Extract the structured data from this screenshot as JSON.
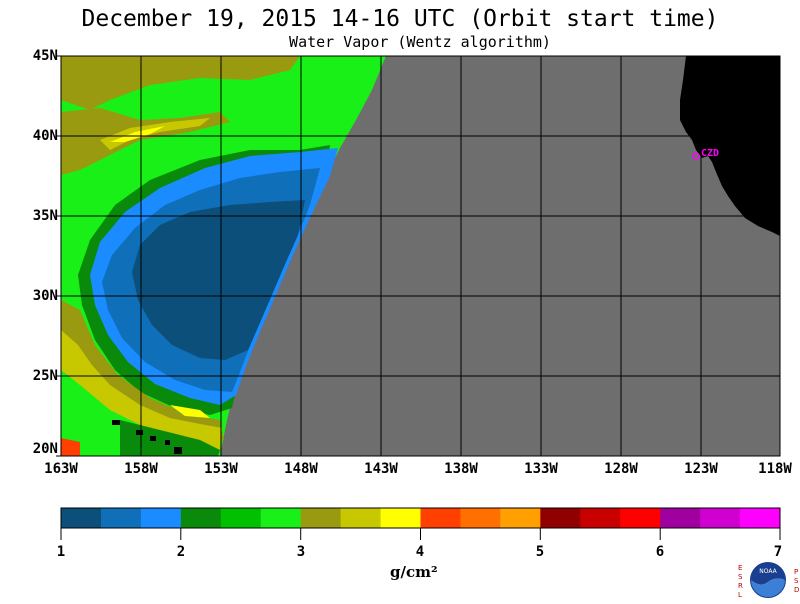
{
  "title": "December 19, 2015  14-16 UTC  (Orbit start time)",
  "subtitle": "Water Vapor (Wentz algorithm)",
  "lat_labels": [
    "45N",
    "40N",
    "35N",
    "30N",
    "25N",
    "20N"
  ],
  "lon_labels": [
    "163W",
    "158W",
    "153W",
    "148W",
    "143W",
    "138W",
    "133W",
    "128W",
    "123W",
    "118W"
  ],
  "station_label": "CZD",
  "colorbar": {
    "ticks": [
      "1",
      "2",
      "3",
      "4",
      "5",
      "6",
      "7"
    ],
    "units": "g/cm²",
    "colors": [
      "#0b4f7a",
      "#0f6fb8",
      "#1a8cff",
      "#0a8a0a",
      "#00c000",
      "#18f018",
      "#9a9a10",
      "#c8c800",
      "#ffff00",
      "#ff4000",
      "#ff7000",
      "#ffa000",
      "#900000",
      "#c80000",
      "#ff0000",
      "#a000a0",
      "#d000d0",
      "#ff00ff"
    ]
  },
  "map_colors": {
    "no_data": "#6e6e6e",
    "land": "#000000",
    "grid": "#000000",
    "station": "#ff00ff"
  },
  "logo": {
    "left_letters": "ESRL",
    "right_letters": "PSD",
    "center": "NOAA"
  }
}
